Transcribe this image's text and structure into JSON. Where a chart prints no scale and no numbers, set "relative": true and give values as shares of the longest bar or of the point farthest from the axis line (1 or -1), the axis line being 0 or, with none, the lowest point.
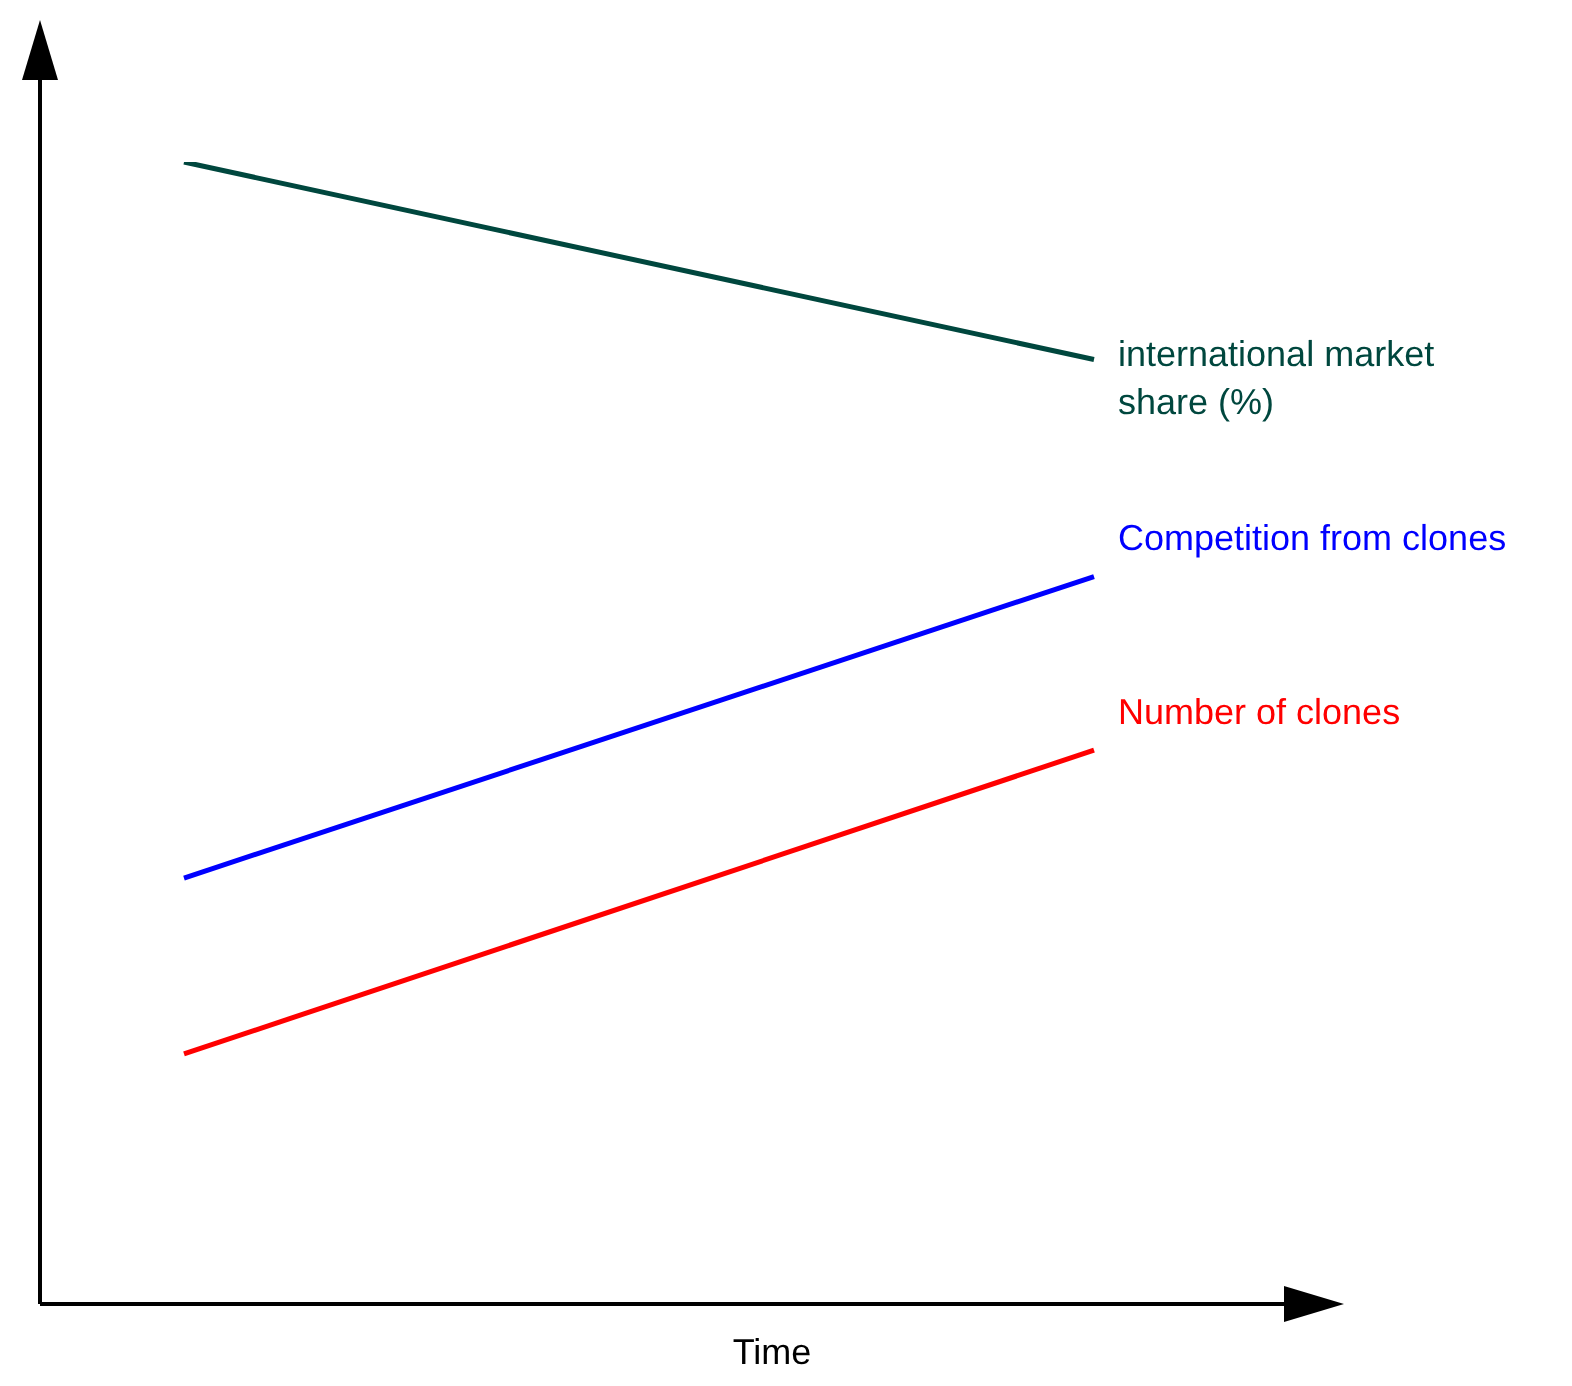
{
  "chart_data": {
    "type": "line",
    "relative": true,
    "xlabel": "Time",
    "categories": [
      null,
      null
    ],
    "legend": false,
    "marker": "none",
    "line_style": "solid",
    "series": [
      {
        "name": "international market share (%)",
        "color": "#00473e",
        "values": [
          1,
          0.827
        ]
      },
      {
        "name": "Competition from clones",
        "color": "#0000ff",
        "values": [
          0.373,
          0.637
        ]
      },
      {
        "name": "Number of clones",
        "color": "#ff0000",
        "values": [
          0.219,
          0.485
        ]
      }
    ]
  }
}
